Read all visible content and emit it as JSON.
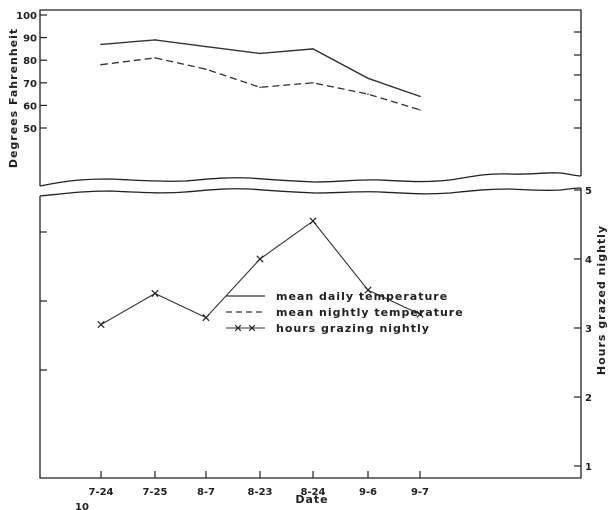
{
  "chart_data": {
    "type": "line",
    "xlabel": "Date",
    "ylabel_left": "Degrees Fahrenheit",
    "ylabel_right": "Hours grazed nightly",
    "categories": [
      "7-24",
      "7-25",
      "8-7",
      "8-23",
      "8-24",
      "9-6",
      "9-7"
    ],
    "top_panel": {
      "axis": "left",
      "ylim": [
        40,
        100
      ],
      "yticks": [
        50,
        60,
        70,
        80,
        90,
        100
      ],
      "series": [
        {
          "name": "mean daily temperature",
          "style": "solid",
          "values": [
            87,
            89,
            86,
            83,
            85,
            72,
            64
          ]
        },
        {
          "name": "mean nightly temperature",
          "style": "dashed",
          "values": [
            78,
            81,
            76,
            68,
            70,
            65,
            58
          ]
        }
      ]
    },
    "bottom_panel": {
      "axis": "right",
      "ylim": [
        1,
        5
      ],
      "yticks": [
        1,
        2,
        3,
        4,
        5
      ],
      "series": [
        {
          "name": "hours grazing nightly",
          "style": "x-marker",
          "values": [
            3.05,
            3.5,
            3.15,
            4.0,
            4.55,
            3.55,
            3.2
          ]
        }
      ]
    },
    "legend": {
      "placement": "center",
      "items": [
        {
          "symbol": "———",
          "label": "mean daily temperature"
        },
        {
          "symbol": "- - - -",
          "label": "mean nightly temperature"
        },
        {
          "symbol": "—x—x—",
          "label": "hours grazing nightly"
        }
      ]
    },
    "footer_note": "10"
  }
}
